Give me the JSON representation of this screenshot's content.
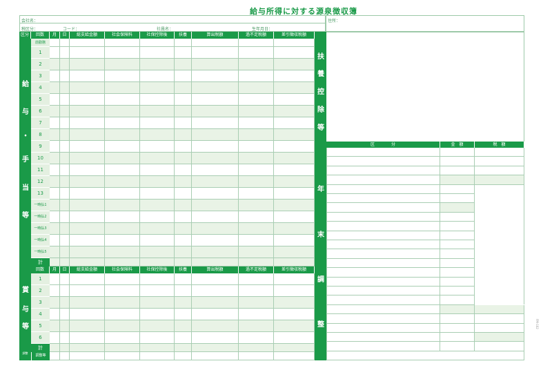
{
  "title": "給与所得に対する源泉徴収簿",
  "header": {
    "company": "会社名：",
    "tax_class": "税区分：",
    "code": "コード：",
    "employee": "社員名：",
    "birthdate": "生年月日：",
    "address": "住所："
  },
  "salary_columns": [
    "区分",
    "回数",
    "月",
    "日",
    "総支給金額",
    "社会保険料",
    "社保控除後",
    "扶養",
    "算出税額",
    "過不足税額",
    "差引徴収税額"
  ],
  "bonus_columns": [
    "回数",
    "月",
    "日",
    "総支給金額",
    "社会保険料",
    "社保控除後",
    "扶養",
    "算出税額",
    "過不足税額",
    "差引徴収税額"
  ],
  "salary_rows": [
    "前勤務",
    "1",
    "2",
    "3",
    "4",
    "5",
    "6",
    "7",
    "8",
    "9",
    "10",
    "11",
    "12",
    "13",
    "一時払1",
    "一時払2",
    "一時払3",
    "一時払4",
    "一時払5",
    "計"
  ],
  "bonus_rows": [
    "1",
    "2",
    "3",
    "4",
    "5",
    "6",
    "計"
  ],
  "adjust_row": {
    "section": "調整",
    "label": "調整等"
  },
  "salary_section_label": [
    "給",
    "与",
    "・",
    "手",
    "当",
    "等"
  ],
  "bonus_section_label": [
    "賞",
    "与",
    "等"
  ],
  "deduction_label": [
    "扶",
    "養",
    "控",
    "除",
    "等"
  ],
  "year_end_label": [
    "年",
    "末",
    "調",
    "整"
  ],
  "year_end_columns": [
    "区　　　　分",
    "金　額",
    "税　額"
  ],
  "form_code": "FM-102",
  "colors": {
    "accent": "#1a9a48",
    "shade": "#e9f3e6"
  }
}
